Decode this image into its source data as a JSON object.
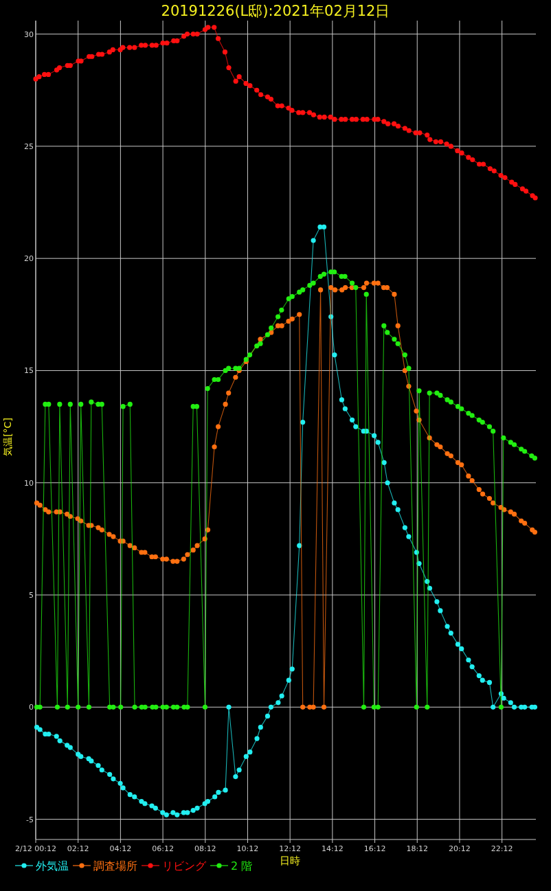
{
  "chart_data": {
    "type": "line",
    "title": "20191226(L邸):2021年02月12日",
    "xlabel": "日時",
    "ylabel": "気温[°C]",
    "xlim": [
      0.2,
      23.8
    ],
    "ylim": [
      -5.9,
      30.6
    ],
    "xticks": [
      {
        "value": 0.2,
        "label": "2/12 00:12"
      },
      {
        "value": 2.2,
        "label": "02:12"
      },
      {
        "value": 4.2,
        "label": "04:12"
      },
      {
        "value": 6.2,
        "label": "06:12"
      },
      {
        "value": 8.2,
        "label": "08:12"
      },
      {
        "value": 10.2,
        "label": "10:12"
      },
      {
        "value": 12.2,
        "label": "12:12"
      },
      {
        "value": 14.2,
        "label": "14:12"
      },
      {
        "value": 16.2,
        "label": "16:12"
      },
      {
        "value": 18.2,
        "label": "18:12"
      },
      {
        "value": 20.2,
        "label": "20:12"
      },
      {
        "value": 22.2,
        "label": "22:12"
      }
    ],
    "yticks": [
      -5,
      0,
      5,
      10,
      15,
      20,
      25,
      30
    ],
    "grid": true,
    "legend": "bottom",
    "marker": "circle",
    "line_style": "solid",
    "series": [
      {
        "name": "外気温",
        "color": "#22eef0",
        "x": [
          0.25,
          0.4,
          0.65,
          0.81,
          1.18,
          1.34,
          1.68,
          1.83,
          2.2,
          2.33,
          2.7,
          2.82,
          3.15,
          3.32,
          3.69,
          3.86,
          4.19,
          4.32,
          4.65,
          4.86,
          5.19,
          5.35,
          5.68,
          5.85,
          6.19,
          6.37,
          6.68,
          6.87,
          7.18,
          7.36,
          7.63,
          7.82,
          8.18,
          8.32,
          8.65,
          8.82,
          9.15,
          9.31,
          9.63,
          9.8,
          10.13,
          10.31,
          10.64,
          10.81,
          11.14,
          11.3,
          11.64,
          11.81,
          12.14,
          12.3,
          12.64,
          12.8,
          13.3,
          13.62,
          13.8,
          14.13,
          14.3,
          14.64,
          14.8,
          15.13,
          15.3,
          15.67,
          15.81,
          16.17,
          16.35,
          16.64,
          16.8,
          17.12,
          17.29,
          17.62,
          17.8,
          18.17,
          18.29,
          18.67,
          18.79,
          19.13,
          19.29,
          19.62,
          19.79,
          20.12,
          20.29,
          20.62,
          20.79,
          21.12,
          21.28,
          21.61,
          21.78,
          22.16,
          22.28,
          22.61,
          22.78,
          23.11,
          23.27,
          23.61,
          23.75
        ],
        "values": [
          -0.9,
          -1.0,
          -1.2,
          -1.2,
          -1.3,
          -1.5,
          -1.7,
          -1.8,
          -2.1,
          -2.2,
          -2.3,
          -2.4,
          -2.6,
          -2.8,
          -3.0,
          -3.2,
          -3.4,
          -3.6,
          -3.9,
          -4.0,
          -4.2,
          -4.3,
          -4.4,
          -4.5,
          -4.7,
          -4.8,
          -4.7,
          -4.8,
          -4.7,
          -4.7,
          -4.6,
          -4.5,
          -4.3,
          -4.2,
          -4.0,
          -3.8,
          -3.7,
          0,
          -3.1,
          -2.8,
          -2.2,
          -2.0,
          -1.4,
          -0.9,
          -0.4,
          0,
          0.2,
          0.5,
          1.2,
          1.7,
          7.2,
          12.7,
          20.8,
          21.4,
          21.4,
          17.4,
          15.7,
          13.7,
          13.3,
          12.8,
          12.5,
          12.3,
          12.3,
          12.1,
          11.8,
          10.9,
          10.0,
          9.1,
          8.8,
          8.0,
          7.6,
          6.9,
          6.4,
          5.6,
          5.3,
          4.7,
          4.3,
          3.6,
          3.3,
          2.8,
          2.6,
          2.1,
          1.8,
          1.4,
          1.2,
          1.1,
          0,
          0.6,
          0.4,
          0.2,
          0,
          0,
          0,
          0,
          0
        ]
      },
      {
        "name": "調査場所",
        "color": "#ff7011",
        "x": [
          0.25,
          0.4,
          0.65,
          0.81,
          1.18,
          1.34,
          1.68,
          1.83,
          2.18,
          2.33,
          2.7,
          2.82,
          3.15,
          3.32,
          3.67,
          3.86,
          4.19,
          4.32,
          4.65,
          4.86,
          5.19,
          5.35,
          5.68,
          5.85,
          6.19,
          6.37,
          6.68,
          6.87,
          7.18,
          7.36,
          7.63,
          7.82,
          8.18,
          8.32,
          8.63,
          8.81,
          9.15,
          9.3,
          9.63,
          9.8,
          10.13,
          10.8,
          11.31,
          11.63,
          11.81,
          12.13,
          12.3,
          12.64,
          12.8,
          13.13,
          13.3,
          13.64,
          13.8,
          14.13,
          14.32,
          14.65,
          14.81,
          15.12,
          15.68,
          15.81,
          16.16,
          16.35,
          16.62,
          16.78,
          17.12,
          17.29,
          17.62,
          17.8,
          18.16,
          18.29,
          18.78,
          19.13,
          19.29,
          19.62,
          19.79,
          20.12,
          20.29,
          20.62,
          20.79,
          21.12,
          21.29,
          21.61,
          21.78,
          22.15,
          22.3,
          22.61,
          22.78,
          23.11,
          23.27,
          23.63,
          23.75
        ],
        "values": [
          9.1,
          9.0,
          8.8,
          8.7,
          8.7,
          8.7,
          8.6,
          8.5,
          8.4,
          8.3,
          8.1,
          8.1,
          8.0,
          7.9,
          7.7,
          7.6,
          7.4,
          7.4,
          7.2,
          7.1,
          6.9,
          6.9,
          6.7,
          6.7,
          6.6,
          6.6,
          6.5,
          6.5,
          6.6,
          6.8,
          7.0,
          7.2,
          7.5,
          7.9,
          11.6,
          12.5,
          13.5,
          14.0,
          14.7,
          15.0,
          15.4,
          16.4,
          16.7,
          17.0,
          17.0,
          17.2,
          17.3,
          17.5,
          0,
          0,
          0,
          18.6,
          0,
          18.7,
          18.6,
          18.6,
          18.7,
          18.7,
          18.7,
          18.9,
          18.9,
          18.9,
          18.7,
          18.7,
          18.4,
          17.0,
          15.0,
          14.3,
          13.2,
          12.8,
          12.0,
          11.7,
          11.6,
          11.3,
          11.2,
          10.9,
          10.8,
          10.3,
          10.1,
          9.7,
          9.5,
          9.3,
          9.1,
          8.9,
          8.8,
          8.7,
          8.6,
          8.3,
          8.2,
          7.9,
          7.8
        ]
      },
      {
        "name": "リビング",
        "color": "#ff1010",
        "x": [
          0.2,
          0.36,
          0.61,
          0.8,
          1.19,
          1.32,
          1.7,
          1.83,
          2.21,
          2.34,
          2.72,
          2.85,
          3.17,
          3.33,
          3.68,
          3.84,
          4.19,
          4.31,
          4.63,
          4.86,
          5.18,
          5.37,
          5.69,
          5.88,
          6.2,
          6.39,
          6.71,
          6.87,
          7.19,
          7.35,
          7.63,
          7.82,
          8.19,
          8.33,
          8.62,
          8.81,
          9.13,
          9.31,
          9.64,
          9.8,
          10.12,
          10.31,
          10.63,
          10.82,
          11.14,
          11.3,
          11.62,
          11.81,
          12.13,
          12.29,
          12.61,
          12.8,
          13.12,
          13.31,
          13.6,
          13.82,
          14.11,
          14.3,
          14.62,
          14.81,
          15.13,
          15.32,
          15.64,
          15.83,
          16.18,
          16.34,
          16.63,
          16.82,
          17.11,
          17.3,
          17.62,
          17.81,
          18.13,
          18.32,
          18.67,
          18.8,
          19.08,
          19.31,
          19.59,
          19.79,
          20.1,
          20.3,
          20.62,
          20.81,
          21.13,
          21.32,
          21.64,
          21.83,
          22.15,
          22.34,
          22.66,
          22.82,
          23.17,
          23.33,
          23.64,
          23.77
        ],
        "values": [
          28.0,
          28.1,
          28.2,
          28.2,
          28.4,
          28.5,
          28.6,
          28.6,
          28.8,
          28.8,
          29.0,
          29.0,
          29.1,
          29.1,
          29.2,
          29.3,
          29.3,
          29.4,
          29.4,
          29.4,
          29.5,
          29.5,
          29.5,
          29.5,
          29.6,
          29.6,
          29.7,
          29.7,
          29.9,
          30.0,
          30.0,
          30.0,
          30.2,
          30.3,
          30.3,
          29.8,
          29.2,
          28.5,
          27.9,
          28.1,
          27.8,
          27.7,
          27.5,
          27.3,
          27.2,
          27.1,
          26.8,
          26.8,
          26.7,
          26.6,
          26.5,
          26.5,
          26.5,
          26.4,
          26.3,
          26.3,
          26.3,
          26.2,
          26.2,
          26.2,
          26.2,
          26.2,
          26.2,
          26.2,
          26.2,
          26.2,
          26.1,
          26.0,
          26.0,
          25.9,
          25.8,
          25.7,
          25.6,
          25.6,
          25.5,
          25.3,
          25.2,
          25.2,
          25.1,
          25.0,
          24.8,
          24.7,
          24.5,
          24.4,
          24.2,
          24.2,
          24.0,
          23.9,
          23.7,
          23.6,
          23.4,
          23.3,
          23.1,
          23.0,
          22.8,
          22.7
        ]
      },
      {
        "name": "2 階",
        "color": "#22ee11",
        "x": [
          0.25,
          0.4,
          0.65,
          0.81,
          1.22,
          1.33,
          1.7,
          1.83,
          2.2,
          2.33,
          2.71,
          2.82,
          3.15,
          3.32,
          3.69,
          3.86,
          4.21,
          4.32,
          4.65,
          4.87,
          5.2,
          5.36,
          5.71,
          5.87,
          6.2,
          6.37,
          6.7,
          6.87,
          7.2,
          7.36,
          7.63,
          7.8,
          8.19,
          8.31,
          8.63,
          8.81,
          9.15,
          9.3,
          9.63,
          9.8,
          10.13,
          10.3,
          10.63,
          10.8,
          11.14,
          11.31,
          11.63,
          11.8,
          12.14,
          12.3,
          12.64,
          12.8,
          13.13,
          13.3,
          13.63,
          13.8,
          14.13,
          14.29,
          14.63,
          14.79,
          15.13,
          15.3,
          15.68,
          15.8,
          16.16,
          16.35,
          16.63,
          16.79,
          17.12,
          17.29,
          17.62,
          17.8,
          18.17,
          18.29,
          18.67,
          18.78,
          19.13,
          19.29,
          19.62,
          19.79,
          20.12,
          20.29,
          20.62,
          20.79,
          21.12,
          21.28,
          21.61,
          21.78,
          22.16,
          22.27,
          22.61,
          22.78,
          23.11,
          23.27,
          23.6,
          23.75
        ],
        "values": [
          0,
          0,
          13.5,
          13.5,
          0,
          13.5,
          0,
          13.5,
          0,
          13.5,
          0,
          13.6,
          13.5,
          13.5,
          0,
          0,
          0,
          13.4,
          13.5,
          0,
          0,
          0,
          0,
          0,
          0,
          0,
          0,
          0,
          0,
          0,
          13.4,
          13.4,
          0,
          14.2,
          14.6,
          14.6,
          15.0,
          15.1,
          15.1,
          15.1,
          15.5,
          15.7,
          16.1,
          16.2,
          16.6,
          16.9,
          17.4,
          17.7,
          18.2,
          18.3,
          18.5,
          18.6,
          18.8,
          18.9,
          19.2,
          19.3,
          19.4,
          19.4,
          19.2,
          19.2,
          18.9,
          18.7,
          0,
          18.4,
          0,
          0,
          17.0,
          16.7,
          16.4,
          16.2,
          15.7,
          15.1,
          0,
          14.1,
          0,
          14.0,
          14.0,
          13.9,
          13.7,
          13.6,
          13.4,
          13.3,
          13.1,
          13.0,
          12.8,
          12.7,
          12.5,
          12.3,
          0,
          12.0,
          11.8,
          11.7,
          11.5,
          11.4,
          11.2,
          11.1
        ]
      }
    ]
  }
}
